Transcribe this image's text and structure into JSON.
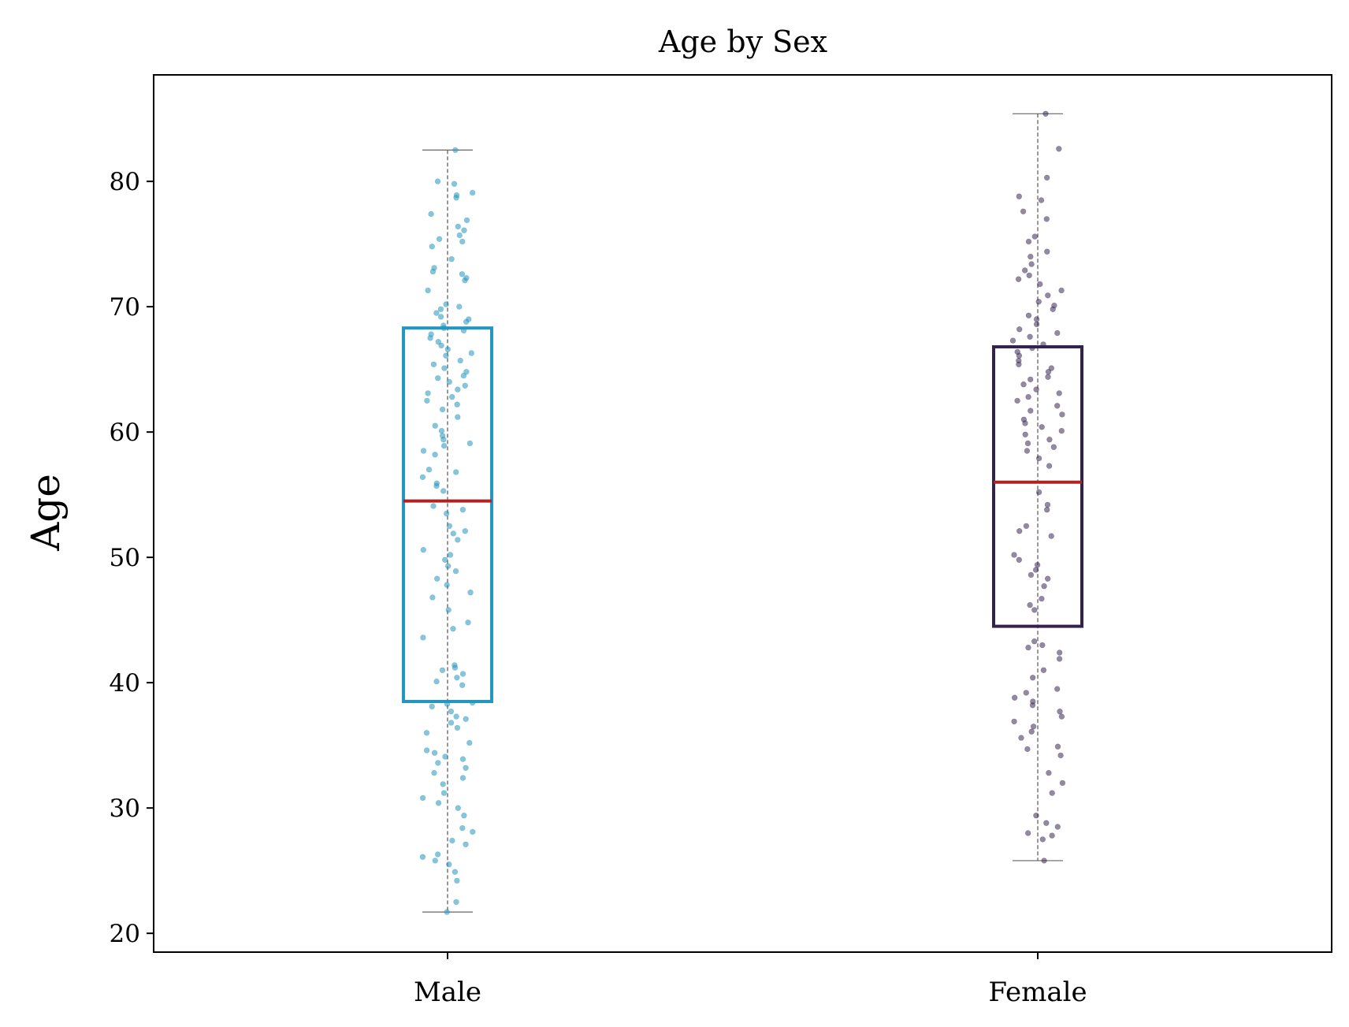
{
  "chart_data": {
    "type": "box",
    "title": "Age by Sex",
    "xlabel": "",
    "ylabel": "Age",
    "ylim": [
      18.5,
      88.5
    ],
    "yticks": [
      20,
      30,
      40,
      50,
      60,
      70,
      80
    ],
    "categories": [
      "Male",
      "Female"
    ],
    "grid": false,
    "boxes": [
      {
        "category": "Male",
        "q1": 38.5,
        "median": 54.5,
        "q3": 68.3,
        "whisker_low": 21.7,
        "whisker_high": 82.5,
        "color": "#2596be",
        "point_color": "#2596be"
      },
      {
        "category": "Female",
        "q1": 44.5,
        "median": 56.0,
        "q3": 66.8,
        "whisker_low": 25.8,
        "whisker_high": 85.4,
        "color": "#32234e",
        "point_color": "#3b2a55"
      }
    ],
    "median_color": "#b22222",
    "points": {
      "Male": [
        82.5,
        80.0,
        79.8,
        79.1,
        78.9,
        78.7,
        77.4,
        76.9,
        76.4,
        76.1,
        75.7,
        75.4,
        75.2,
        74.8,
        73.8,
        73.1,
        72.8,
        72.6,
        72.3,
        72.1,
        71.3,
        70.2,
        70.0,
        69.8,
        69.5,
        69.2,
        69.0,
        68.8,
        68.5,
        68.3,
        68.1,
        67.8,
        67.5,
        67.2,
        66.9,
        66.6,
        66.3,
        66.1,
        65.7,
        65.4,
        65.1,
        64.8,
        64.5,
        64.3,
        64.0,
        63.7,
        63.4,
        63.1,
        62.8,
        62.5,
        62.2,
        61.8,
        61.2,
        60.5,
        60.1,
        59.7,
        59.4,
        59.1,
        58.9,
        58.5,
        58.2,
        57.0,
        56.8,
        56.4,
        55.9,
        55.7,
        55.3,
        54.1,
        53.8,
        53.5,
        52.5,
        52.1,
        51.9,
        51.4,
        50.6,
        50.2,
        49.8,
        49.3,
        48.9,
        48.3,
        47.8,
        47.2,
        46.8,
        45.8,
        44.8,
        44.3,
        43.6,
        41.4,
        41.2,
        41.0,
        40.7,
        40.4,
        40.1,
        39.8,
        38.4,
        38.3,
        38.1,
        37.7,
        37.3,
        37.1,
        36.8,
        36.4,
        36.0,
        35.2,
        34.6,
        34.4,
        34.1,
        33.9,
        33.6,
        33.2,
        32.8,
        32.4,
        31.9,
        31.2,
        30.8,
        30.4,
        30.0,
        29.4,
        28.4,
        28.1,
        27.4,
        27.1,
        26.3,
        26.1,
        25.8,
        25.5,
        24.9,
        24.2,
        22.5,
        21.7
      ],
      "Female": [
        85.4,
        82.6,
        80.3,
        78.8,
        78.5,
        77.6,
        77.0,
        75.6,
        75.2,
        74.4,
        74.0,
        73.4,
        72.9,
        72.5,
        72.2,
        71.8,
        71.3,
        70.9,
        70.4,
        70.1,
        69.8,
        69.3,
        69.0,
        68.6,
        68.2,
        67.9,
        67.6,
        67.3,
        67.0,
        66.7,
        66.4,
        66.1,
        65.7,
        65.4,
        65.1,
        64.8,
        64.4,
        64.2,
        63.8,
        63.4,
        63.1,
        62.8,
        62.5,
        62.1,
        61.7,
        61.4,
        61.0,
        60.7,
        60.4,
        60.1,
        59.8,
        59.4,
        59.1,
        58.8,
        58.5,
        57.9,
        57.3,
        55.2,
        54.2,
        53.8,
        52.5,
        52.1,
        51.7,
        50.2,
        49.8,
        49.4,
        49.0,
        48.6,
        48.3,
        47.7,
        46.7,
        46.2,
        45.8,
        43.3,
        43.0,
        42.8,
        42.4,
        41.9,
        41.0,
        40.4,
        39.5,
        39.2,
        38.8,
        38.5,
        38.2,
        37.7,
        37.3,
        36.9,
        36.5,
        36.1,
        35.6,
        34.9,
        34.7,
        34.2,
        32.8,
        32.0,
        31.2,
        29.4,
        28.8,
        28.5,
        28.0,
        27.8,
        27.5,
        25.8
      ]
    }
  }
}
